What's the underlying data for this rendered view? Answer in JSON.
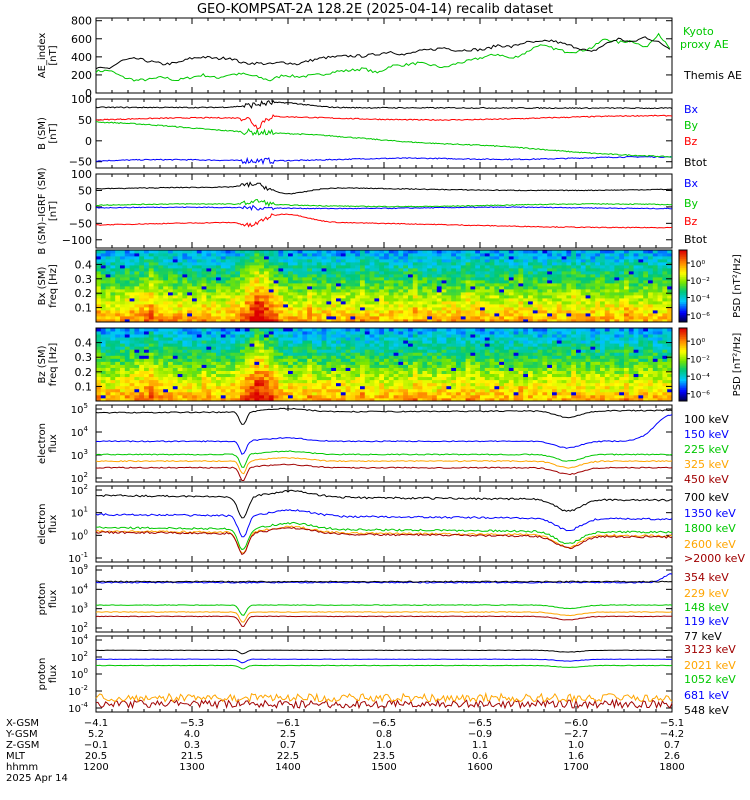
{
  "title": "GEO-KOMPSAT-2A 128.2E (2025-04-14) recalib dataset",
  "chart_data": [
    {
      "type": "line",
      "ylabel": [
        "AE_index",
        "[nT]"
      ],
      "yticks": [
        "0",
        "200",
        "400",
        "600",
        "800"
      ],
      "ylim": [
        0,
        830
      ],
      "series": [
        {
          "name": "Kyoto",
          "name2": "proxy AE",
          "color": "#00c800",
          "values": [
            240,
            250,
            175,
            140,
            150,
            175,
            140,
            170,
            200,
            165,
            205,
            210,
            180,
            140,
            200,
            180,
            190,
            210,
            240,
            250,
            270,
            220,
            300,
            310,
            330,
            310,
            280,
            330,
            360,
            400,
            430,
            380,
            440,
            530,
            500,
            460,
            460,
            500,
            600,
            560,
            580,
            500,
            660,
            450
          ]
        },
        {
          "name": "Themis AE",
          "color": "#000000",
          "values": [
            270,
            275,
            360,
            380,
            350,
            320,
            330,
            380,
            400,
            380,
            390,
            330,
            330,
            320,
            340,
            320,
            360,
            390,
            400,
            410,
            410,
            430,
            460,
            420,
            460,
            480,
            500,
            470,
            480,
            480,
            530,
            510,
            560,
            560,
            580,
            540,
            500,
            450,
            540,
            600,
            560,
            620,
            560,
            480
          ]
        }
      ]
    },
    {
      "type": "line",
      "ylabel": [
        "B (SM)",
        "[nT]"
      ],
      "yticks": [
        "−50",
        "0",
        "50",
        "100"
      ],
      "ylim": [
        -65,
        100
      ],
      "series": [
        {
          "name": "Bx",
          "color": "#0000ff"
        },
        {
          "name": "By",
          "color": "#00c800"
        },
        {
          "name": "Bz",
          "color": "#ff0000"
        },
        {
          "name": "Btot",
          "color": "#000000"
        }
      ]
    },
    {
      "type": "line",
      "ylabel": [
        "B (SM)–IGRF (SM)",
        "[nT]"
      ],
      "yticks": [
        "−100",
        "−50",
        "0",
        "50",
        "100"
      ],
      "ylim": [
        -125,
        100
      ],
      "series": [
        {
          "name": "Bx",
          "color": "#0000ff"
        },
        {
          "name": "By",
          "color": "#00c800"
        },
        {
          "name": "Bz",
          "color": "#ff0000"
        },
        {
          "name": "Btot",
          "color": "#000000"
        }
      ]
    },
    {
      "type": "heatmap",
      "ylabel": [
        "Bx (SM)",
        "freq [Hz]"
      ],
      "yticks": [
        "0.1",
        "0.2",
        "0.3",
        "0.4"
      ],
      "ylim": [
        0,
        0.5
      ],
      "colorbar_label": "PSD [nT²/Hz]",
      "colorbar_ticks": [
        "10⁰",
        "10⁻²",
        "10⁻⁴",
        "10⁻⁶"
      ]
    },
    {
      "type": "heatmap",
      "ylabel": [
        "Bz (SM)",
        "freq [Hz]"
      ],
      "yticks": [
        "0.1",
        "0.2",
        "0.3",
        "0.4"
      ],
      "ylim": [
        0,
        0.5
      ],
      "colorbar_label": "PSD [nT²/Hz]",
      "colorbar_ticks": [
        "10⁰",
        "10⁻²",
        "10⁻⁴",
        "10⁻⁶"
      ]
    },
    {
      "type": "line",
      "log": true,
      "ylabel": [
        "electron",
        "flux"
      ],
      "yticks": [
        [
          "10",
          "5"
        ],
        [
          "10",
          "4"
        ],
        [
          "10",
          "3"
        ],
        [
          "10",
          "2"
        ]
      ],
      "ylim": [
        1.5,
        5.0
      ],
      "series": [
        {
          "name": "100 keV",
          "color": "#000000",
          "level": 4.65
        },
        {
          "name": "150 keV",
          "color": "#0000ff",
          "level": 3.35
        },
        {
          "name": "225 keV",
          "color": "#00c800",
          "level": 2.75
        },
        {
          "name": "325 keV",
          "color": "#ffa500",
          "level": 2.45
        },
        {
          "name": "450 keV",
          "color": "#a00000",
          "level": 2.15
        }
      ]
    },
    {
      "type": "line",
      "log": true,
      "ylabel": [
        "electron",
        "flux"
      ],
      "yticks": [
        [
          "10",
          "2"
        ],
        [
          "10",
          "1"
        ],
        [
          "10",
          "0"
        ],
        [
          "10",
          "-1"
        ]
      ],
      "ylim": [
        -1.2,
        2.0
      ],
      "series": [
        {
          "name": "700 keV",
          "color": "#000000",
          "level": 1.6
        },
        {
          "name": "1350 keV",
          "color": "#0000ff",
          "level": 0.8
        },
        {
          "name": "1800 keV",
          "color": "#00c800",
          "level": 0.25
        },
        {
          "name": "2600 keV",
          "color": "#ffa500",
          "level": 0.1
        },
        {
          "name": ">2000 keV",
          "color": "#a00000",
          "level": 0.05
        }
      ]
    },
    {
      "type": "line",
      "log": true,
      "ylabel": [
        "proton",
        "flux"
      ],
      "yticks": [
        [
          "10",
          "9"
        ],
        [
          "10",
          "4"
        ],
        [
          "10",
          "3"
        ],
        [
          "10",
          "2"
        ]
      ],
      "ylim": [
        1.2,
        5.0
      ],
      "series": [
        {
          "name": "354 keV",
          "color": "#a00000",
          "level": 2.1
        },
        {
          "name": "229 keV",
          "color": "#ffa500",
          "level": 2.35
        },
        {
          "name": "148 keV",
          "color": "#00c800",
          "level": 2.75
        },
        {
          "name": "119 keV",
          "color": "#0000ff",
          "level": 4.05
        },
        {
          "name": "77 keV",
          "color": "#000000",
          "level": 4.1
        }
      ]
    },
    {
      "type": "line",
      "log": true,
      "ylabel": [
        "proton",
        "flux"
      ],
      "yticks": [
        [
          "10",
          "4"
        ],
        [
          "10",
          "2"
        ],
        [
          "10",
          "0"
        ],
        [
          "10",
          "-2"
        ],
        [
          "10",
          "-4"
        ]
      ],
      "ylim": [
        -4.5,
        4.0
      ],
      "series": [
        {
          "name": "3123 keV",
          "color": "#a00000",
          "level": -3.6
        },
        {
          "name": "2021 keV",
          "color": "#ffa500",
          "level": -2.9
        },
        {
          "name": "1052 keV",
          "color": "#00c800",
          "level": 0.7
        },
        {
          "name": "681 keV",
          "color": "#0000ff",
          "level": 1.4
        },
        {
          "name": "548 keV",
          "color": "#000000",
          "level": 2.4
        }
      ]
    }
  ],
  "x_axis": {
    "rows": [
      {
        "label": "X-GSM",
        "values": [
          "−4.1",
          "−5.3",
          "−6.1",
          "−6.5",
          "−6.5",
          "−6.0",
          "−5.1"
        ]
      },
      {
        "label": "Y-GSM",
        "values": [
          "5.2",
          "4.0",
          "2.5",
          "0.8",
          "−0.9",
          "−2.7",
          "−4.2"
        ]
      },
      {
        "label": "Z-GSM",
        "values": [
          "−0.1",
          "0.3",
          "0.7",
          "1.0",
          "1.1",
          "1.0",
          "0.7"
        ]
      },
      {
        "label": "MLT",
        "values": [
          "20.5",
          "21.5",
          "22.5",
          "23.5",
          "0.6",
          "1.6",
          "2.6"
        ]
      },
      {
        "label": "hhmm",
        "values": [
          "1200",
          "1300",
          "1400",
          "1500",
          "1600",
          "1700",
          "1800"
        ]
      }
    ],
    "date": "2025 Apr 14"
  }
}
